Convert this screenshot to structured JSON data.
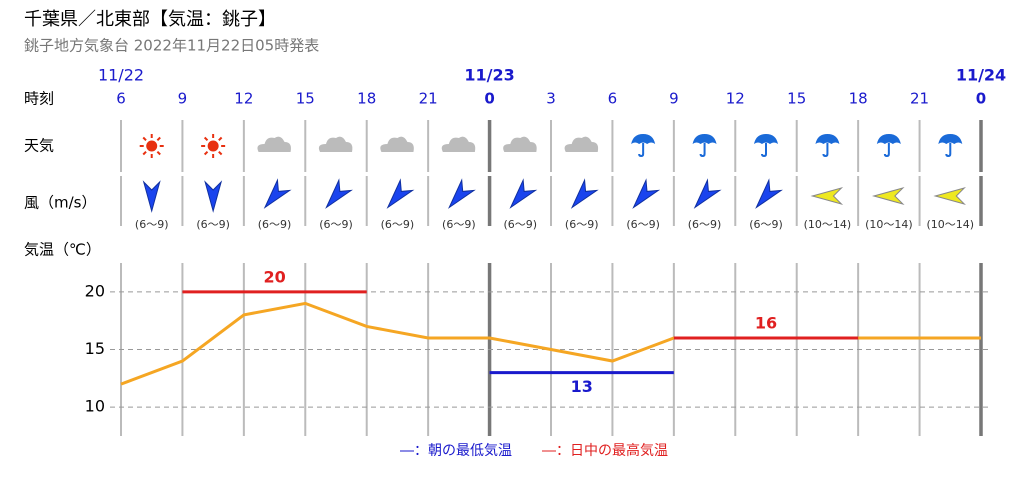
{
  "chart_data": {
    "type": "line",
    "title": "千葉県／北東部【気温：銚子】",
    "subtitle": "銚子地方気象台 2022年11月22日05時発表",
    "row_labels": [
      "時刻",
      "天気",
      "風（m/s）",
      "気温（℃）"
    ],
    "date_labels": [
      "11/22",
      null,
      null,
      null,
      null,
      null,
      "11/23",
      null,
      null,
      null,
      null,
      null,
      null,
      null,
      "11/24"
    ],
    "categories": [
      "6",
      "9",
      "12",
      "15",
      "18",
      "21",
      "0",
      "3",
      "6",
      "9",
      "12",
      "15",
      "18",
      "21",
      "0"
    ],
    "wind_labels": [
      "(6～9)",
      "(6～9)",
      "(6～9)",
      "(6～9)",
      "(6～9)",
      "(6～9)",
      "(6～9)",
      "(6～9)",
      "(6～9)",
      "(6～9)",
      "(6～9)",
      "(10～14)",
      "(10～14)",
      "(10～14)"
    ],
    "series": [
      {
        "color": "#f5a623",
        "values": [
          12,
          14,
          18,
          19,
          17,
          16,
          16,
          15,
          14,
          16,
          16,
          16,
          16,
          16,
          16
        ]
      },
      {
        "name": "朝の最低気温",
        "color": "#1a1acc",
        "values": [
          null,
          null,
          null,
          null,
          null,
          null,
          13,
          13,
          13,
          13,
          null,
          null,
          null,
          null,
          null
        ]
      },
      {
        "name": "日中の最高気温",
        "color": "#e02020",
        "values": [
          null,
          20,
          20,
          20,
          20,
          null,
          null,
          null,
          null,
          16,
          16,
          16,
          16,
          null,
          null
        ]
      }
    ],
    "legend_marker": "―：",
    "ylim": [
      7.5,
      22.5
    ],
    "yticks": [
      10,
      15,
      20
    ],
    "grid": true
  }
}
